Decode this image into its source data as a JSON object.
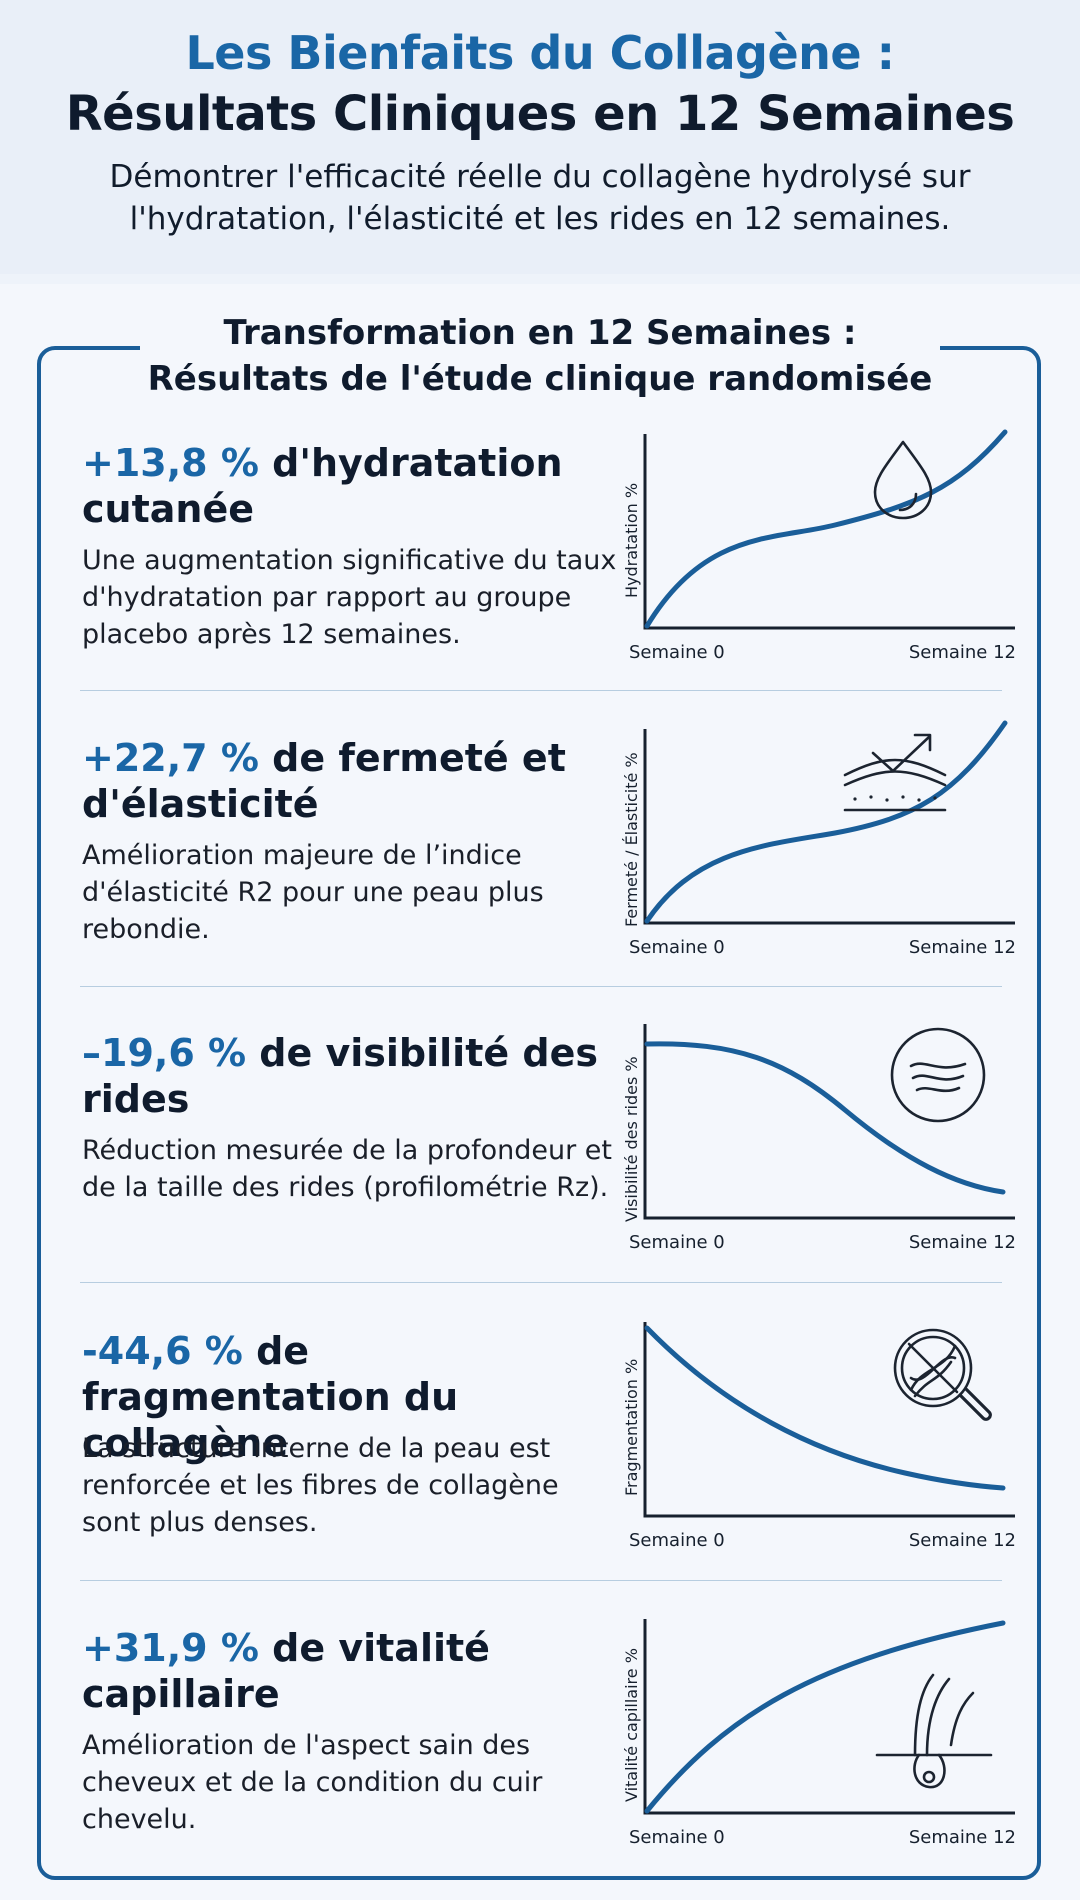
{
  "header": {
    "title_line1": "Les Bienfaits du Collagène :",
    "title_line2": "Résultats Cliniques en 12 Semaines",
    "subtitle": "Démontrer l'efficacité réelle du collagène hydrolysé sur l'hydratation, l'élasticité et les rides en 12 semaines."
  },
  "section": {
    "title": "Transformation en 12 Semaines : Résultats de l'étude clinique randomisée"
  },
  "colors": {
    "accent": "#1a66a6",
    "curve": "#1a5e99",
    "text": "#0f1b2d"
  },
  "results": [
    {
      "stat": "+13,8 %",
      "headline": " d'hydratation cutanée",
      "description": "Une augmentation significative du taux d'hydratation par rapport au groupe placebo après 12 semaines.",
      "ylabel": "Hydratation %",
      "x_start": "Semaine 0",
      "x_end": "Semaine 12",
      "icon": "water-drop-icon"
    },
    {
      "stat": "+22,7 %",
      "headline": " de fermeté et d'élasticité",
      "description": "Amélioration majeure de l’indice d'élasticité R2 pour une peau plus rebondie.",
      "ylabel": "Fermeté / Élasticité %",
      "x_start": "Semaine 0",
      "x_end": "Semaine 12",
      "icon": "skin-firmness-icon"
    },
    {
      "stat": "–19,6 %",
      "headline": " de visibilité des rides",
      "description": "Réduction mesurée de la profondeur et de la taille des rides (profilométrie Rz).",
      "ylabel": "Visibilité des rides %",
      "x_start": "Semaine 0",
      "x_end": "Semaine 12",
      "icon": "wrinkle-circle-icon"
    },
    {
      "stat": "-44,6 %",
      "headline": " de fragmentation du collagène",
      "description": "La structure interne de la peau est renforcée et les fibres de collagène sont plus denses.",
      "ylabel": "Fragmentation %",
      "x_start": "Semaine 0",
      "x_end": "Semaine 12",
      "icon": "magnifier-fiber-icon"
    },
    {
      "stat": "+31,9 %",
      "headline": " de vitalité capillaire",
      "description": "Amélioration de l'aspect sain des cheveux et de la condition du cuir chevelu.",
      "ylabel": "Vitalité capillaire %",
      "x_start": "Semaine 0",
      "x_end": "Semaine 12",
      "icon": "hair-follicle-icon"
    }
  ]
}
